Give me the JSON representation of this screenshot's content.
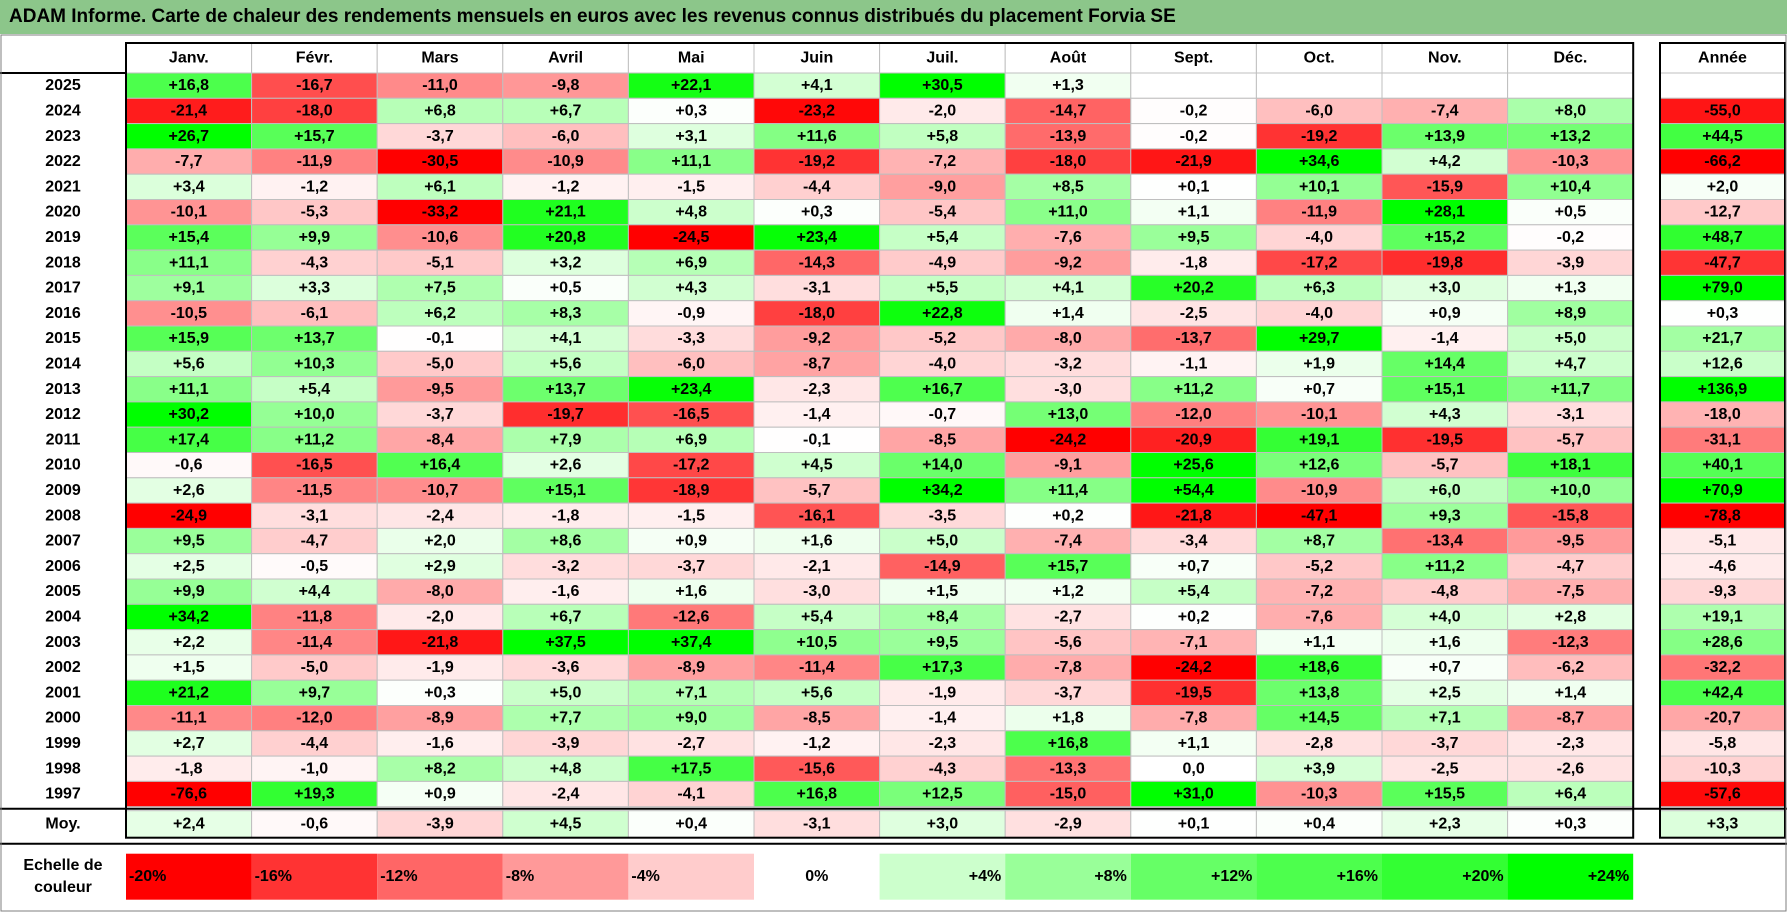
{
  "title": "ADAM Informe. Carte de chaleur des rendements mensuels en euros avec les revenus connus distribués du placement Forvia SE",
  "chart_data": {
    "type": "heatmap",
    "title": "ADAM Informe. Carte de chaleur des rendements mensuels en euros avec les revenus connus distribués du placement Forvia SE",
    "columns": [
      "Janv.",
      "Févr.",
      "Mars",
      "Avril",
      "Mai",
      "Juin",
      "Juil.",
      "Août",
      "Sept.",
      "Oct.",
      "Nov.",
      "Déc."
    ],
    "year_column_label": "Année",
    "average_row_label": "Moy.",
    "rows": [
      {
        "year": "2025",
        "values": [
          16.8,
          -16.7,
          -11.0,
          -9.8,
          22.1,
          4.1,
          30.5,
          1.3,
          null,
          null,
          null,
          null
        ],
        "annual": null
      },
      {
        "year": "2024",
        "values": [
          -21.4,
          -18.0,
          6.8,
          6.7,
          0.3,
          -23.2,
          -2.0,
          -14.7,
          -0.2,
          -6.0,
          -7.4,
          8.0
        ],
        "annual": -55.0
      },
      {
        "year": "2023",
        "values": [
          26.7,
          15.7,
          -3.7,
          -6.0,
          3.1,
          11.6,
          5.8,
          -13.9,
          -0.2,
          -19.2,
          13.9,
          13.2
        ],
        "annual": 44.5
      },
      {
        "year": "2022",
        "values": [
          -7.7,
          -11.9,
          -30.5,
          -10.9,
          11.1,
          -19.2,
          -7.2,
          -18.0,
          -21.9,
          34.6,
          4.2,
          -10.3
        ],
        "annual": -66.2
      },
      {
        "year": "2021",
        "values": [
          3.4,
          -1.2,
          6.1,
          -1.2,
          -1.5,
          -4.4,
          -9.0,
          8.5,
          0.1,
          10.1,
          -15.9,
          10.4
        ],
        "annual": 2.0
      },
      {
        "year": "2020",
        "values": [
          -10.1,
          -5.3,
          -33.2,
          21.1,
          4.8,
          0.3,
          -5.4,
          11.0,
          1.1,
          -11.9,
          28.1,
          0.5
        ],
        "annual": -12.7
      },
      {
        "year": "2019",
        "values": [
          15.4,
          9.9,
          -10.6,
          20.8,
          -24.5,
          23.4,
          5.4,
          -7.6,
          9.5,
          -4.0,
          15.2,
          -0.2
        ],
        "annual": 48.7
      },
      {
        "year": "2018",
        "values": [
          11.1,
          -4.3,
          -5.1,
          3.2,
          6.9,
          -14.3,
          -4.9,
          -9.2,
          -1.8,
          -17.2,
          -19.8,
          -3.9
        ],
        "annual": -47.7
      },
      {
        "year": "2017",
        "values": [
          9.1,
          3.3,
          7.5,
          0.5,
          4.3,
          -3.1,
          5.5,
          4.1,
          20.2,
          6.3,
          3.0,
          1.3
        ],
        "annual": 79.0
      },
      {
        "year": "2016",
        "values": [
          -10.5,
          -6.1,
          6.2,
          8.3,
          -0.9,
          -18.0,
          22.8,
          1.4,
          -2.5,
          -4.0,
          0.9,
          8.9
        ],
        "annual": 0.3
      },
      {
        "year": "2015",
        "values": [
          15.9,
          13.7,
          -0.1,
          4.1,
          -3.3,
          -9.2,
          -5.2,
          -8.0,
          -13.7,
          29.7,
          -1.4,
          5.0
        ],
        "annual": 21.7
      },
      {
        "year": "2014",
        "values": [
          5.6,
          10.3,
          -5.0,
          5.6,
          -6.0,
          -8.7,
          -4.0,
          -3.2,
          -1.1,
          1.9,
          14.4,
          4.7
        ],
        "annual": 12.6
      },
      {
        "year": "2013",
        "values": [
          11.1,
          5.4,
          -9.5,
          13.7,
          23.4,
          -2.3,
          16.7,
          -3.0,
          11.2,
          0.7,
          15.1,
          11.7
        ],
        "annual": 136.9
      },
      {
        "year": "2012",
        "values": [
          30.2,
          10.0,
          -3.7,
          -19.7,
          -16.5,
          -1.4,
          -0.7,
          13.0,
          -12.0,
          -10.1,
          4.3,
          -3.1
        ],
        "annual": -18.0
      },
      {
        "year": "2011",
        "values": [
          17.4,
          11.2,
          -8.4,
          7.9,
          6.9,
          -0.1,
          -8.5,
          -24.2,
          -20.9,
          19.1,
          -19.5,
          -5.7
        ],
        "annual": -31.1
      },
      {
        "year": "2010",
        "values": [
          -0.6,
          -16.5,
          16.4,
          2.6,
          -17.2,
          4.5,
          14.0,
          -9.1,
          25.6,
          12.6,
          -5.7,
          18.1
        ],
        "annual": 40.1
      },
      {
        "year": "2009",
        "values": [
          2.6,
          -11.5,
          -10.7,
          15.1,
          -18.9,
          -5.7,
          34.2,
          11.4,
          54.4,
          -10.9,
          6.0,
          10.0
        ],
        "annual": 70.9
      },
      {
        "year": "2008",
        "values": [
          -24.9,
          -3.1,
          -2.4,
          -1.8,
          -1.5,
          -16.1,
          -3.5,
          0.2,
          -21.8,
          -47.1,
          9.3,
          -15.8
        ],
        "annual": -78.8
      },
      {
        "year": "2007",
        "values": [
          9.5,
          -4.7,
          2.0,
          8.6,
          0.9,
          1.6,
          5.0,
          -7.4,
          -3.4,
          8.7,
          -13.4,
          -9.5
        ],
        "annual": -5.1
      },
      {
        "year": "2006",
        "values": [
          2.5,
          -0.5,
          2.9,
          -3.2,
          -3.7,
          -2.1,
          -14.9,
          15.7,
          0.7,
          -5.2,
          11.2,
          -4.7
        ],
        "annual": -4.6
      },
      {
        "year": "2005",
        "values": [
          9.9,
          4.4,
          -8.0,
          -1.6,
          1.6,
          -3.0,
          1.5,
          1.2,
          5.4,
          -7.2,
          -4.8,
          -7.5
        ],
        "annual": -9.3
      },
      {
        "year": "2004",
        "values": [
          34.2,
          -11.8,
          -2.0,
          6.7,
          -12.6,
          5.4,
          8.4,
          -2.7,
          0.2,
          -7.6,
          4.0,
          2.8
        ],
        "annual": 19.1
      },
      {
        "year": "2003",
        "values": [
          2.2,
          -11.4,
          -21.8,
          37.5,
          37.4,
          10.5,
          9.5,
          -5.6,
          -7.1,
          1.1,
          1.6,
          -12.3
        ],
        "annual": 28.6
      },
      {
        "year": "2002",
        "values": [
          1.5,
          -5.0,
          -1.9,
          -3.6,
          -8.9,
          -11.4,
          17.3,
          -7.8,
          -24.2,
          18.6,
          0.7,
          -6.2
        ],
        "annual": -32.2
      },
      {
        "year": "2001",
        "values": [
          21.2,
          9.7,
          0.3,
          5.0,
          7.1,
          5.6,
          -1.9,
          -3.7,
          -19.5,
          13.8,
          2.5,
          1.4
        ],
        "annual": 42.4
      },
      {
        "year": "2000",
        "values": [
          -11.1,
          -12.0,
          -8.9,
          7.7,
          9.0,
          -8.5,
          -1.4,
          1.8,
          -7.8,
          14.5,
          7.1,
          -8.7
        ],
        "annual": -20.7
      },
      {
        "year": "1999",
        "values": [
          2.7,
          -4.4,
          -1.6,
          -3.9,
          -2.7,
          -1.2,
          -2.3,
          16.8,
          1.1,
          -2.8,
          -3.7,
          -2.3
        ],
        "annual": -5.8
      },
      {
        "year": "1998",
        "values": [
          -1.8,
          -1.0,
          8.2,
          4.8,
          17.5,
          -15.6,
          -4.3,
          -13.3,
          0.0,
          3.9,
          -2.5,
          -2.6
        ],
        "annual": -10.3
      },
      {
        "year": "1997",
        "values": [
          -76.6,
          19.3,
          0.9,
          -2.4,
          -4.1,
          16.8,
          12.5,
          -15.0,
          31.0,
          -10.3,
          15.5,
          6.4
        ],
        "annual": -57.6
      }
    ],
    "averages": [
      2.4,
      -0.6,
      -3.9,
      4.5,
      0.4,
      -3.1,
      3.0,
      -2.9,
      0.1,
      0.4,
      2.3,
      0.3
    ],
    "average_annual": 3.3,
    "color_scale": {
      "label_line1": "Echelle de",
      "label_line2": "couleur",
      "stops": [
        {
          "label": "-20%",
          "value": -20,
          "color": "#ff0000"
        },
        {
          "label": "-16%",
          "value": -16,
          "color": "#ff3333"
        },
        {
          "label": "-12%",
          "value": -12,
          "color": "#ff6666"
        },
        {
          "label": "-8%",
          "value": -8,
          "color": "#ff9999"
        },
        {
          "label": "-4%",
          "value": -4,
          "color": "#ffcccc"
        },
        {
          "label": "0%",
          "value": 0,
          "color": "#ffffff"
        },
        {
          "label": "+4%",
          "value": 4,
          "color": "#ccffcc"
        },
        {
          "label": "+8%",
          "value": 8,
          "color": "#99ff99"
        },
        {
          "label": "+12%",
          "value": 12,
          "color": "#66ff66"
        },
        {
          "label": "+16%",
          "value": 16,
          "color": "#4dff4d"
        },
        {
          "label": "+20%",
          "value": 20,
          "color": "#33ff33"
        },
        {
          "label": "+24%",
          "value": 24,
          "color": "#00ff00"
        }
      ]
    }
  }
}
